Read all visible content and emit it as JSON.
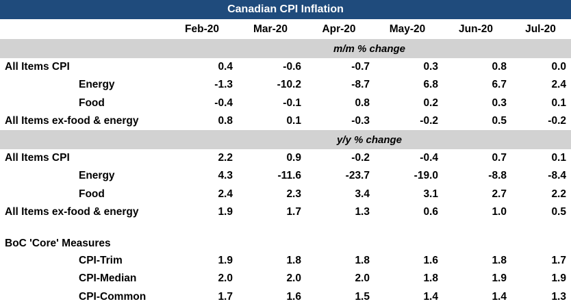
{
  "colors": {
    "header_bg": "#1F4B7C",
    "band_bg": "#D2D2D2",
    "title_text": "#FFFFFF",
    "body_text": "#000000"
  },
  "chart_data": {
    "type": "table",
    "title": "Canadian CPI Inflation",
    "columns": [
      "Feb-20",
      "Mar-20",
      "Apr-20",
      "May-20",
      "Jun-20",
      "Jul-20"
    ],
    "sections": [
      {
        "band_label": "m/m % change",
        "rows": [
          {
            "label": "All Items CPI",
            "indent": false,
            "values": [
              "0.4",
              "-0.6",
              "-0.7",
              "0.3",
              "0.8",
              "0.0"
            ]
          },
          {
            "label": "Energy",
            "indent": true,
            "values": [
              "-1.3",
              "-10.2",
              "-8.7",
              "6.8",
              "6.7",
              "2.4"
            ]
          },
          {
            "label": "Food",
            "indent": true,
            "values": [
              "-0.4",
              "-0.1",
              "0.8",
              "0.2",
              "0.3",
              "0.1"
            ]
          },
          {
            "label": "All Items ex-food & energy",
            "indent": false,
            "values": [
              "0.8",
              "0.1",
              "-0.3",
              "-0.2",
              "0.5",
              "-0.2"
            ]
          }
        ]
      },
      {
        "band_label": "y/y % change",
        "rows": [
          {
            "label": "All Items CPI",
            "indent": false,
            "values": [
              "2.2",
              "0.9",
              "-0.2",
              "-0.4",
              "0.7",
              "0.1"
            ]
          },
          {
            "label": "Energy",
            "indent": true,
            "values": [
              "4.3",
              "-11.6",
              "-23.7",
              "-19.0",
              "-8.8",
              "-8.4"
            ]
          },
          {
            "label": "Food",
            "indent": true,
            "values": [
              "2.4",
              "2.3",
              "3.4",
              "3.1",
              "2.7",
              "2.2"
            ]
          },
          {
            "label": "All Items ex-food & energy",
            "indent": false,
            "values": [
              "1.9",
              "1.7",
              "1.3",
              "0.6",
              "1.0",
              "0.5"
            ]
          }
        ]
      }
    ],
    "core": {
      "heading": "BoC 'Core' Measures",
      "rows": [
        {
          "label": "CPI-Trim",
          "values": [
            "1.9",
            "1.8",
            "1.8",
            "1.6",
            "1.8",
            "1.7"
          ]
        },
        {
          "label": "CPI-Median",
          "values": [
            "2.0",
            "2.0",
            "2.0",
            "1.8",
            "1.9",
            "1.9"
          ]
        },
        {
          "label": "CPI-Common",
          "values": [
            "1.7",
            "1.6",
            "1.5",
            "1.4",
            "1.4",
            "1.3"
          ]
        }
      ]
    }
  }
}
